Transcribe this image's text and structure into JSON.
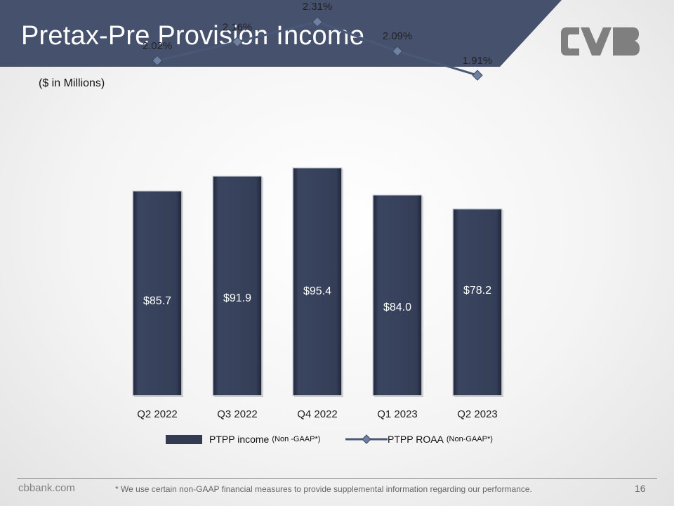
{
  "header": {
    "title": "Pretax-Pre Provision Income",
    "band_color": "#46526d",
    "logo_icon": "cvb-logo-icon",
    "logo_color": "#7f7f7f"
  },
  "units_note": "($ in Millions)",
  "chart_data": {
    "type": "bar",
    "categories": [
      "Q2 2022",
      "Q3 2022",
      "Q4 2022",
      "Q1 2023",
      "Q2 2023"
    ],
    "series": [
      {
        "name": "PTPP income",
        "name_qualifier": "(Non -GAAP*)",
        "type": "bar",
        "values": [
          85.7,
          91.9,
          95.4,
          84.0,
          78.2
        ],
        "labels": [
          "$85.7",
          "$91.9",
          "$95.4",
          "$84.0",
          "$78.2"
        ],
        "color": "#323b52"
      },
      {
        "name": "PTPP ROAA",
        "name_qualifier": "(Non-GAAP*)",
        "type": "line",
        "values": [
          2.02,
          2.16,
          2.31,
          2.09,
          1.91
        ],
        "labels": [
          "2.02%",
          "2.16%",
          "2.31%",
          "2.09%",
          "1.91%"
        ],
        "color": "#4a5878",
        "marker": "diamond",
        "marker_color": "#7080a0"
      }
    ],
    "title": "",
    "xlabel": "",
    "ylabel": "",
    "ylim": [
      0,
      100
    ],
    "y2lim": [
      0,
      2.6
    ],
    "grid": false,
    "legend": "bottom"
  },
  "footer": {
    "site": "cbbank.com",
    "note": "* We use certain non-GAAP financial measures to provide supplemental information regarding our performance.",
    "page_number": "16"
  }
}
